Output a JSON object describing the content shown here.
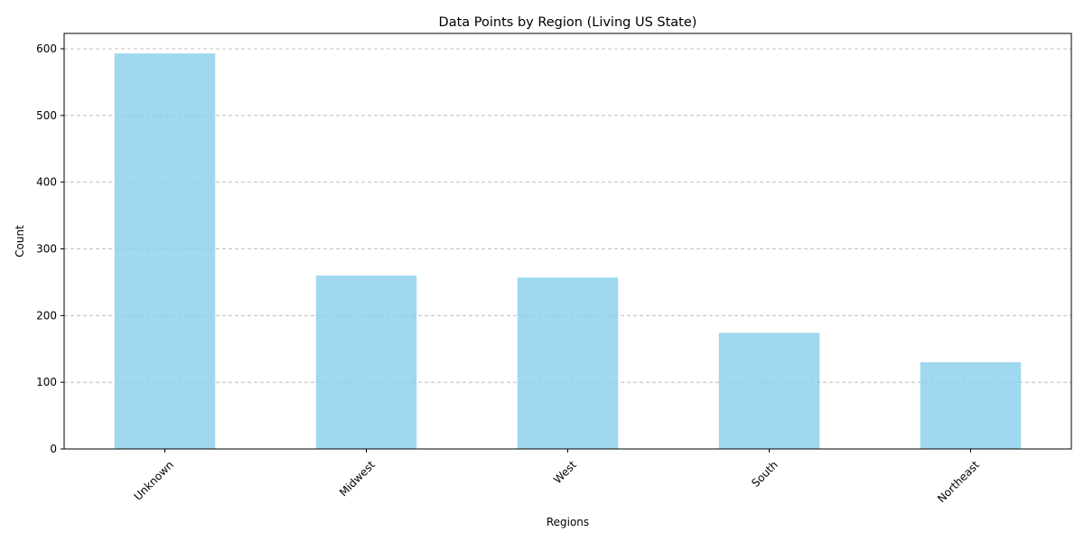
{
  "chart_data": {
    "type": "bar",
    "title": "Data Points by Region (Living US State)",
    "xlabel": "Regions",
    "ylabel": "Count",
    "categories": [
      "Unknown",
      "Midwest",
      "West",
      "South",
      "Northeast"
    ],
    "values": [
      593,
      260,
      257,
      174,
      130
    ],
    "ylim": [
      0,
      623
    ],
    "yticks": [
      0,
      100,
      200,
      300,
      400,
      500,
      600
    ],
    "grid": "y-dashed",
    "bar_color": "#87ceeb",
    "bar_opacity": 0.8,
    "xtick_rotation_deg": 45
  }
}
